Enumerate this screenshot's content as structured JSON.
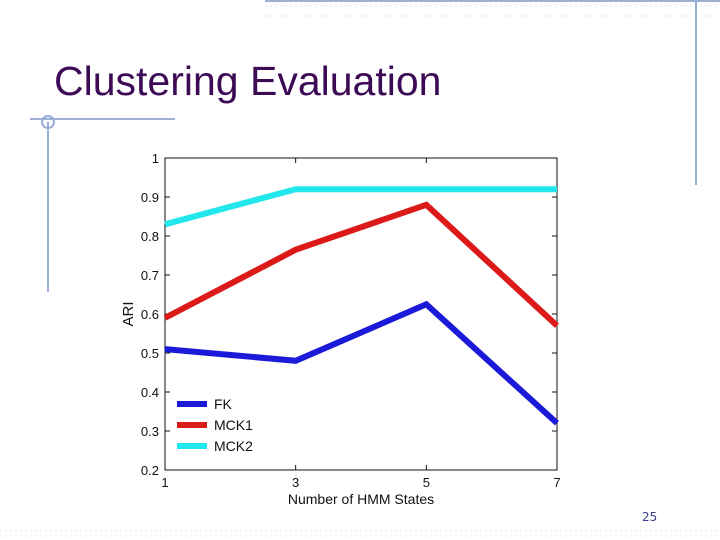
{
  "slide": {
    "title": "Clustering Evaluation",
    "page_number": "25"
  },
  "colors": {
    "title": "#3d0a55",
    "decor_line": "#9aaed6",
    "fk": "#1a1ad8",
    "mck1": "#dd1a1a",
    "mck2": "#22e8ee"
  },
  "chart_data": {
    "type": "line",
    "title": "",
    "xlabel": "Number of HMM States",
    "ylabel": "ARI",
    "x": [
      1,
      3,
      5,
      7
    ],
    "xticks": [
      "1",
      "3",
      "5",
      "7"
    ],
    "yticks": [
      "0.2",
      "0.3",
      "0.4",
      "0.5",
      "0.6",
      "0.7",
      "0.8",
      "0.9",
      "1"
    ],
    "xlim": [
      1,
      7
    ],
    "ylim": [
      0.2,
      1.0
    ],
    "grid": false,
    "legend_position": "bottom-left",
    "series": [
      {
        "name": "FK",
        "color": "#1a1ad8",
        "values": [
          0.51,
          0.48,
          0.625,
          0.32
        ]
      },
      {
        "name": "MCK1",
        "color": "#dd1a1a",
        "values": [
          0.59,
          0.765,
          0.88,
          0.57
        ]
      },
      {
        "name": "MCK2",
        "color": "#22e8ee",
        "values": [
          0.83,
          0.92,
          0.92,
          0.92
        ]
      }
    ]
  }
}
